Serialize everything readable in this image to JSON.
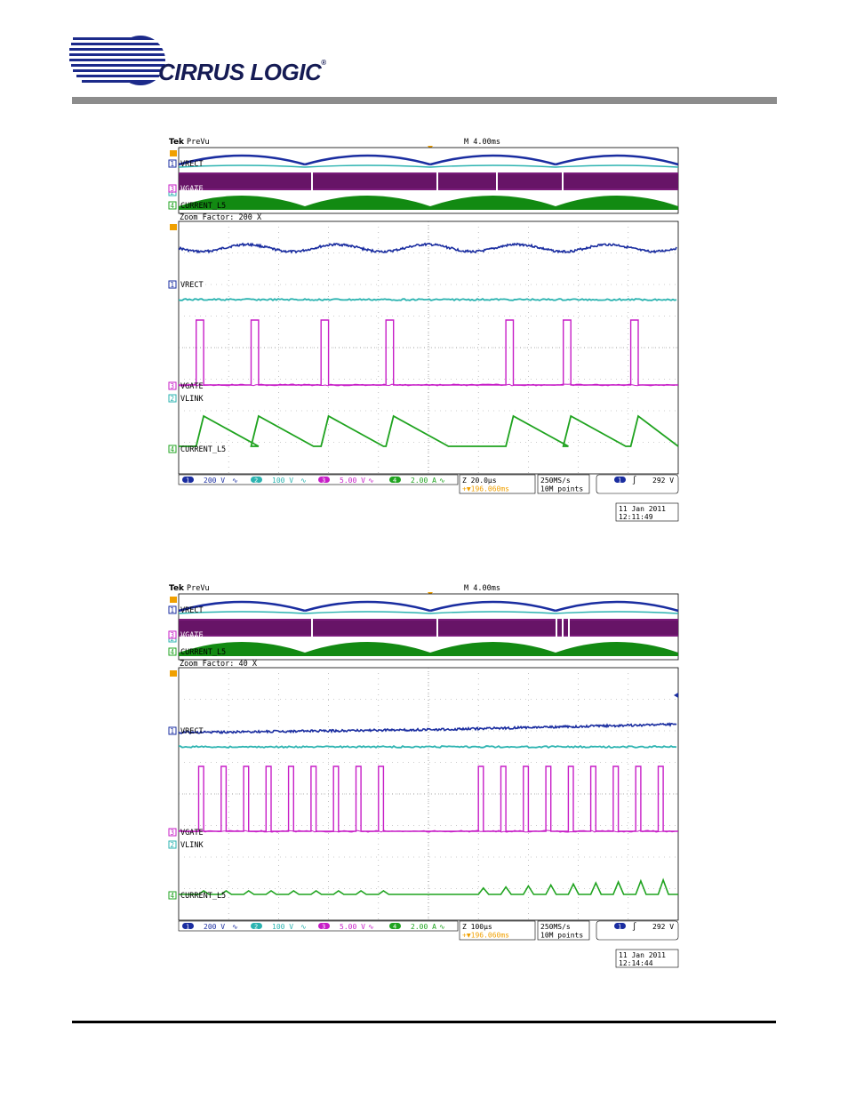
{
  "brand": {
    "name": "CIRRUS LOGIC",
    "mark": "®"
  },
  "colors": {
    "ch1": "#1a2da0",
    "ch2": "#2bb3b0",
    "ch3": "#c71ec7",
    "ch4": "#1fa31f",
    "trigger": "#f0a000",
    "grid": "#999999"
  },
  "scopes": [
    {
      "brand_label": "Tek",
      "mode_label": "PreVu",
      "timebase": "M 4.00ms",
      "zoom_label": "Zoom Factor: 200 X",
      "overview_labels": {
        "ch1": "VRECT",
        "ch2": "VLINK",
        "ch3": "VGATE",
        "ch4": "CURRENT_L5"
      },
      "zoom_labels": {
        "ch1": "VRECT",
        "ch3": "VGATE",
        "ch2": "VLINK",
        "ch4": "CURRENT_L5"
      },
      "channels": [
        {
          "num": "1",
          "scale": "200 V",
          "icon": "bandwidth-icon"
        },
        {
          "num": "2",
          "scale": "100 V",
          "icon": "bandwidth-icon"
        },
        {
          "num": "3",
          "scale": "5.00 V",
          "icon": "bandwidth-icon"
        },
        {
          "num": "4",
          "scale": "2.00 A",
          "icon": "bandwidth-icon"
        }
      ],
      "zoom_time": "Z 20.0µs",
      "zoom_position": "+▼196.060ms",
      "sample_rate": "250MS/s",
      "record_length": "10M points",
      "trigger_channel": "1",
      "trigger_level": "292 V",
      "date": "11 Jan  2011",
      "time": "12:11:49",
      "zoom_pulses": [
        {
          "start": 0.035,
          "end": 0.05
        },
        {
          "start": 0.145,
          "end": 0.16
        },
        {
          "start": 0.285,
          "end": 0.3
        },
        {
          "start": 0.415,
          "end": 0.43
        },
        {
          "start": 0.655,
          "end": 0.67
        },
        {
          "start": 0.77,
          "end": 0.785
        },
        {
          "start": 0.905,
          "end": 0.92
        }
      ],
      "current_shape": "triangle"
    },
    {
      "brand_label": "Tek",
      "mode_label": "PreVu",
      "timebase": "M 4.00ms",
      "zoom_label": "Zoom Factor: 40 X",
      "overview_labels": {
        "ch1": "VRECT",
        "ch2": "VLINK",
        "ch3": "VGATE",
        "ch4": "CURRENT_L5"
      },
      "zoom_labels": {
        "ch1": "VRECT",
        "ch3": "VGATE",
        "ch2": "VLINK",
        "ch4": "CURRENT_L5"
      },
      "channels": [
        {
          "num": "1",
          "scale": "200 V",
          "icon": "bandwidth-icon"
        },
        {
          "num": "2",
          "scale": "100 V",
          "icon": "bandwidth-icon"
        },
        {
          "num": "3",
          "scale": "5.00 V",
          "icon": "bandwidth-icon"
        },
        {
          "num": "4",
          "scale": "2.00 A",
          "icon": "bandwidth-icon"
        }
      ],
      "zoom_time": "Z 100µs",
      "zoom_position": "+▼196.060ms",
      "sample_rate": "250MS/s",
      "record_length": "10M points",
      "trigger_channel": "1",
      "trigger_level": "292 V",
      "date": "11 Jan  2011",
      "time": "12:14:44",
      "zoom_pulses": [
        {
          "start": 0.04,
          "end": 0.05
        },
        {
          "start": 0.085,
          "end": 0.095
        },
        {
          "start": 0.13,
          "end": 0.14
        },
        {
          "start": 0.175,
          "end": 0.185
        },
        {
          "start": 0.22,
          "end": 0.23
        },
        {
          "start": 0.265,
          "end": 0.275
        },
        {
          "start": 0.31,
          "end": 0.32
        },
        {
          "start": 0.355,
          "end": 0.365
        },
        {
          "start": 0.4,
          "end": 0.41
        },
        {
          "start": 0.6,
          "end": 0.61
        },
        {
          "start": 0.645,
          "end": 0.655
        },
        {
          "start": 0.69,
          "end": 0.7
        },
        {
          "start": 0.735,
          "end": 0.745
        },
        {
          "start": 0.78,
          "end": 0.79
        },
        {
          "start": 0.825,
          "end": 0.835
        },
        {
          "start": 0.87,
          "end": 0.88
        },
        {
          "start": 0.915,
          "end": 0.925
        },
        {
          "start": 0.96,
          "end": 0.97
        }
      ],
      "current_shape": "small"
    }
  ]
}
